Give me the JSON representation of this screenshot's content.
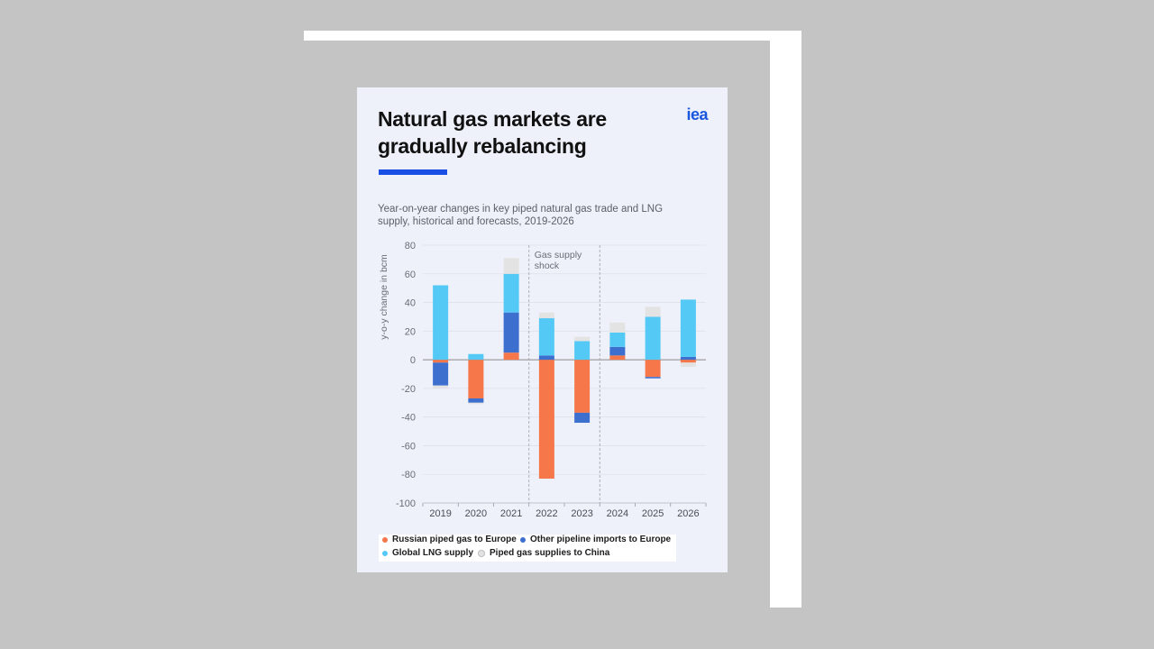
{
  "card": {
    "title": "Natural gas markets are gradually rebalancing",
    "logo": "iea",
    "accent_color": "#1a4fe6",
    "subtitle": "Year-on-year changes in key piped natural gas trade and LNG supply, historical and forecasts, 2019-2026"
  },
  "chart_data": {
    "type": "bar",
    "stacked": true,
    "categories": [
      "2019",
      "2020",
      "2021",
      "2022",
      "2023",
      "2024",
      "2025",
      "2026"
    ],
    "ylabel": "y-o-y change in bcm",
    "ylim": [
      -100,
      80
    ],
    "yticks": [
      80,
      60,
      40,
      20,
      0,
      -20,
      -40,
      -60,
      -80,
      -100
    ],
    "grid": true,
    "annotation": "Gas supply shock",
    "series": [
      {
        "name": "Russian piped gas to Europe",
        "color": "#f5774a",
        "values": [
          -2,
          -27,
          5,
          -83,
          -37,
          3,
          -12,
          -2
        ]
      },
      {
        "name": "Other pipeline imports to Europe",
        "color": "#3d6fcf",
        "values": [
          -16,
          -3,
          28,
          3,
          -7,
          6,
          -1,
          2
        ]
      },
      {
        "name": "Global LNG supply",
        "color": "#54c9f5",
        "values": [
          52,
          4,
          27,
          26,
          13,
          10,
          30,
          40
        ]
      },
      {
        "name": "Piped gas supplies to China",
        "color": "#e3e3e3",
        "values": [
          -2,
          -1,
          11,
          4,
          3,
          7,
          7,
          -3
        ]
      }
    ]
  }
}
